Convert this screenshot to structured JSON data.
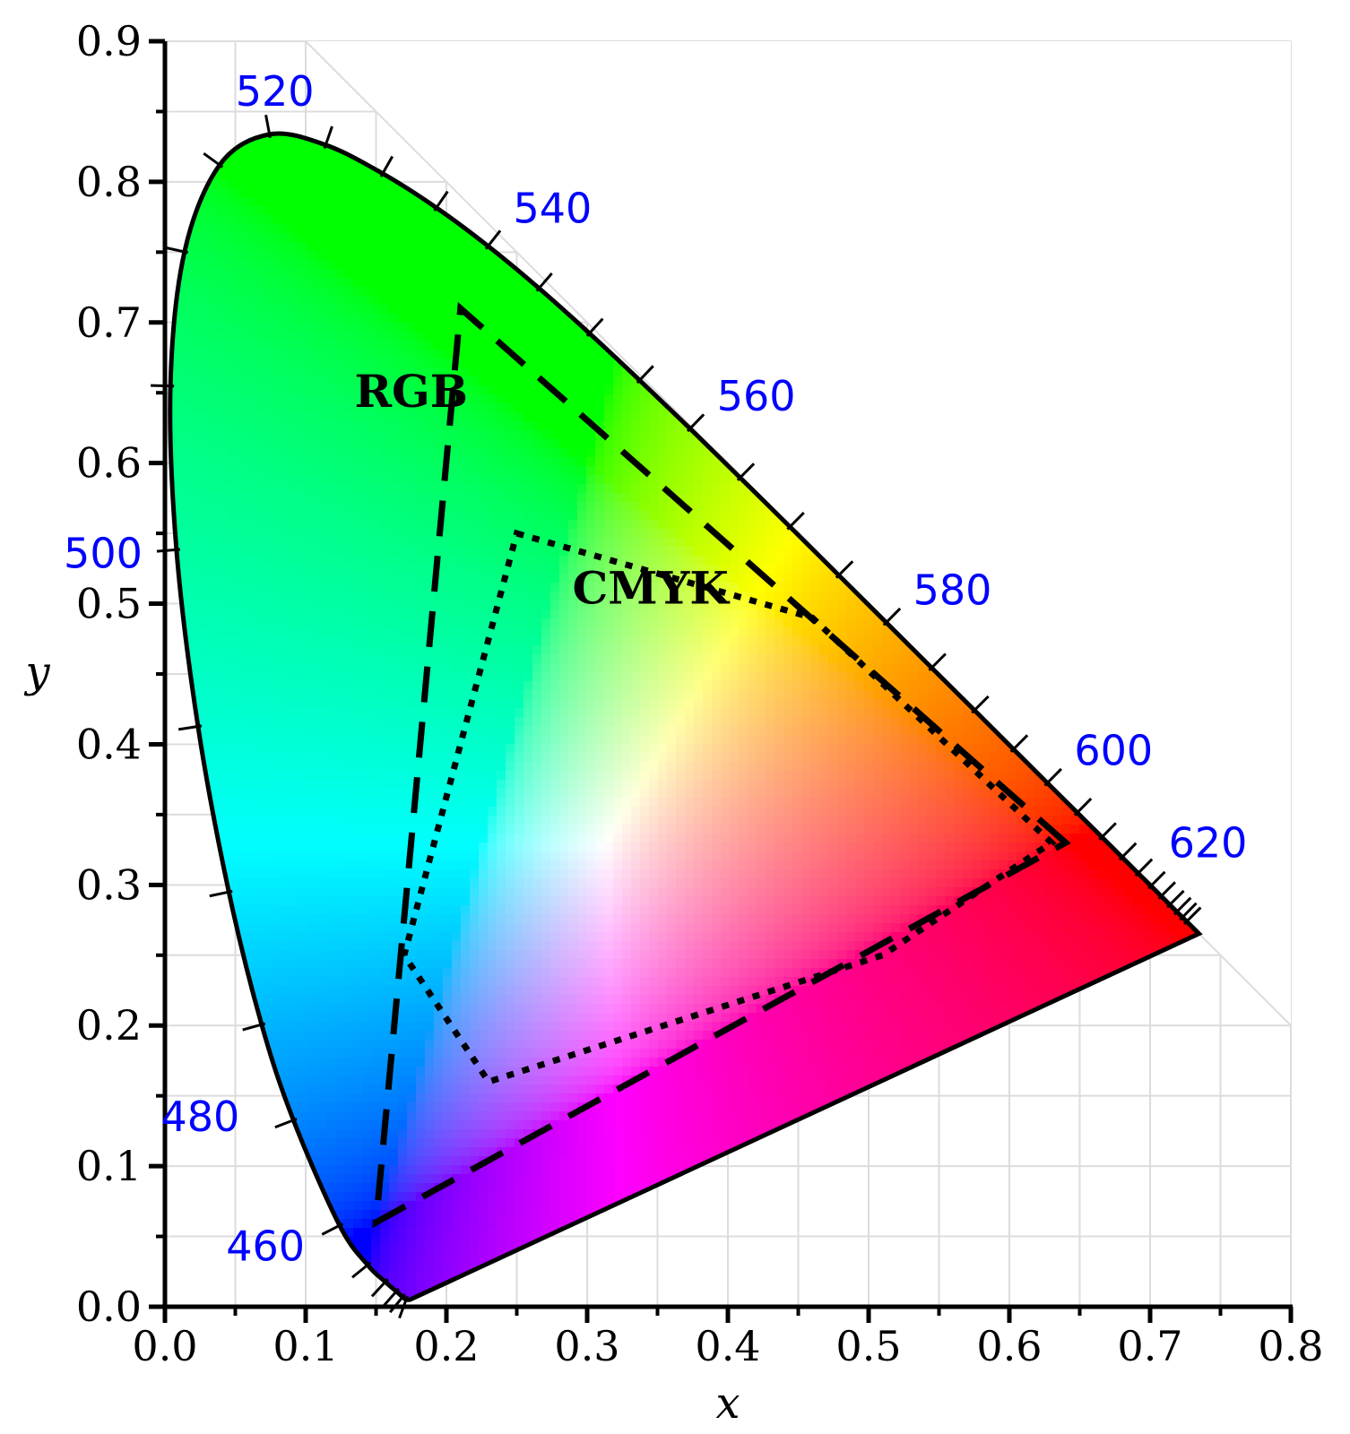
{
  "chart_data": {
    "type": "scatter",
    "title": "",
    "xlabel": "x",
    "ylabel": "y",
    "xlim": [
      0.0,
      0.8
    ],
    "ylim": [
      0.0,
      0.9
    ],
    "x_ticks": [
      "0.0",
      "0.1",
      "0.2",
      "0.3",
      "0.4",
      "0.5",
      "0.6",
      "0.7",
      "0.8"
    ],
    "y_ticks": [
      "0.0",
      "0.1",
      "0.2",
      "0.3",
      "0.4",
      "0.5",
      "0.6",
      "0.7",
      "0.8",
      "0.9"
    ],
    "grid": true,
    "wavelength_label_color": "#0000ff",
    "spectral_locus": [
      [
        0.1741,
        0.005
      ],
      [
        0.1714,
        0.0051
      ],
      [
        0.1689,
        0.0069
      ],
      [
        0.1644,
        0.0109
      ],
      [
        0.1566,
        0.0177
      ],
      [
        0.144,
        0.0297
      ],
      [
        0.1241,
        0.0578
      ],
      [
        0.0913,
        0.1327
      ],
      [
        0.0687,
        0.2007
      ],
      [
        0.0454,
        0.295
      ],
      [
        0.0235,
        0.4127
      ],
      [
        0.0082,
        0.5384
      ],
      [
        0.0039,
        0.6548
      ],
      [
        0.0139,
        0.7502
      ],
      [
        0.0389,
        0.812
      ],
      [
        0.0743,
        0.8338
      ],
      [
        0.1142,
        0.8262
      ],
      [
        0.1547,
        0.8059
      ],
      [
        0.1929,
        0.7816
      ],
      [
        0.2296,
        0.7543
      ],
      [
        0.2658,
        0.7243
      ],
      [
        0.3016,
        0.6923
      ],
      [
        0.3373,
        0.6589
      ],
      [
        0.3731,
        0.6245
      ],
      [
        0.4087,
        0.5896
      ],
      [
        0.4441,
        0.5547
      ],
      [
        0.4788,
        0.5202
      ],
      [
        0.5125,
        0.4866
      ],
      [
        0.5448,
        0.4544
      ],
      [
        0.5752,
        0.4242
      ],
      [
        0.6029,
        0.3965
      ],
      [
        0.627,
        0.3725
      ],
      [
        0.6482,
        0.3514
      ],
      [
        0.6658,
        0.334
      ],
      [
        0.6801,
        0.3197
      ],
      [
        0.6915,
        0.3083
      ],
      [
        0.7006,
        0.2993
      ],
      [
        0.7079,
        0.292
      ],
      [
        0.714,
        0.2859
      ],
      [
        0.719,
        0.2809
      ],
      [
        0.723,
        0.277
      ],
      [
        0.726,
        0.274
      ],
      [
        0.7347,
        0.2653
      ]
    ],
    "wavelength_labels": [
      {
        "label": "460",
        "x": 0.144,
        "y": 0.0297
      },
      {
        "label": "480",
        "x": 0.0913,
        "y": 0.1327
      },
      {
        "label": "500",
        "x": 0.0082,
        "y": 0.5384
      },
      {
        "label": "520",
        "x": 0.0743,
        "y": 0.8338
      },
      {
        "label": "540",
        "x": 0.2296,
        "y": 0.7543
      },
      {
        "label": "560",
        "x": 0.3731,
        "y": 0.6245
      },
      {
        "label": "580",
        "x": 0.5125,
        "y": 0.4866
      },
      {
        "label": "600",
        "x": 0.627,
        "y": 0.3725
      },
      {
        "label": "620",
        "x": 0.6915,
        "y": 0.3083
      }
    ],
    "gamuts": [
      {
        "name": "RGB",
        "style": "dashed",
        "points": [
          [
            0.64,
            0.33
          ],
          [
            0.21,
            0.71
          ],
          [
            0.15,
            0.06
          ]
        ]
      },
      {
        "name": "CMYK",
        "style": "dotted",
        "points": [
          [
            0.25,
            0.55
          ],
          [
            0.46,
            0.49
          ],
          [
            0.63,
            0.33
          ],
          [
            0.51,
            0.25
          ],
          [
            0.23,
            0.16
          ],
          [
            0.17,
            0.25
          ]
        ]
      }
    ]
  }
}
